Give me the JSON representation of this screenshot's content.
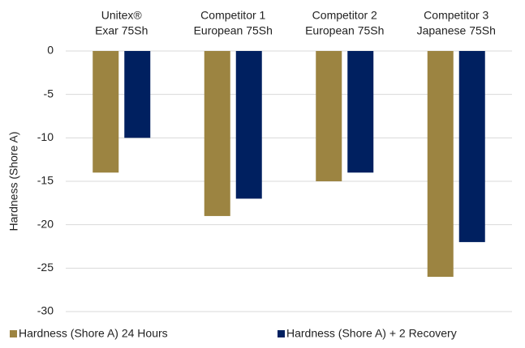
{
  "chart_data": {
    "type": "bar",
    "categories": [
      [
        "Unitex®",
        "Exar 75Sh"
      ],
      [
        "Competitor 1",
        "European 75Sh"
      ],
      [
        "Competitor 2",
        "European 75Sh"
      ],
      [
        "Competitor 3",
        "Japanese 75Sh"
      ]
    ],
    "series": [
      {
        "name": "Hardness (Shore A) 24 Hours",
        "color": "#9c8441",
        "values": [
          -14,
          -19,
          -15,
          -26
        ]
      },
      {
        "name": "Hardness (Shore A) + 2 Recovery",
        "color": "#002060",
        "values": [
          -10,
          -17,
          -14,
          -22
        ]
      }
    ],
    "y_label": "Hardness (Shore A)",
    "ylim": [
      -30,
      0
    ],
    "yticks": [
      0,
      -5,
      -10,
      -15,
      -20,
      -25,
      -30
    ],
    "grid": true,
    "legend": "bottom"
  }
}
